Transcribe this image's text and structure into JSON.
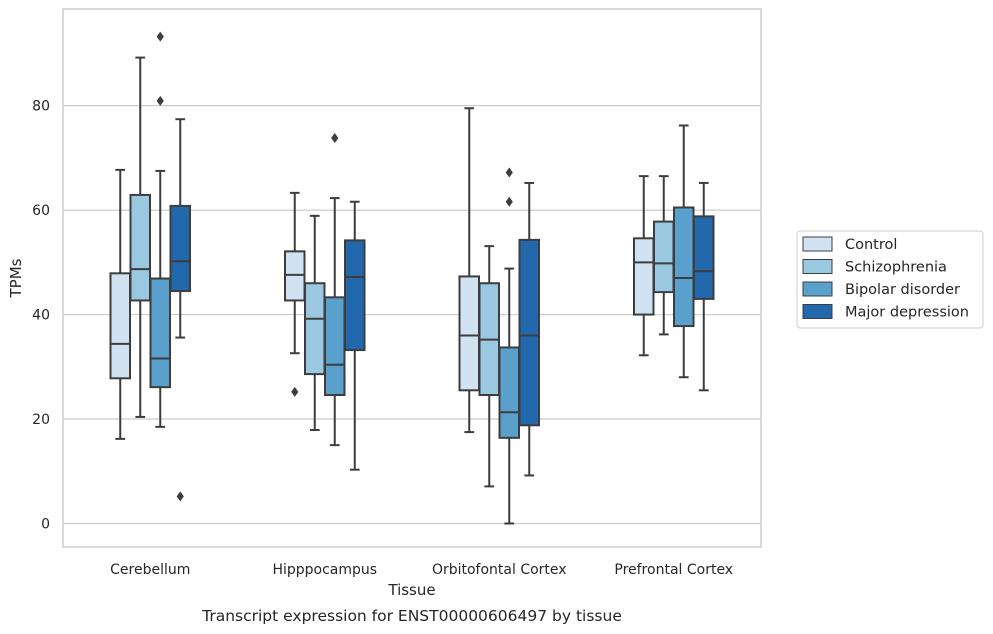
{
  "caption": "Transcript expression for ENST00000606497 by tissue",
  "chart_data": {
    "type": "box",
    "xlabel": "Tissue",
    "ylabel": "TPMs",
    "ylim": [
      -4.5,
      98.5
    ],
    "yticks": [
      0,
      20,
      40,
      60,
      80
    ],
    "grid": "horizontal",
    "legend_position": "right",
    "categories": [
      "Cerebellum",
      "Hipppocampus",
      "Orbitofontal Cortex",
      "Prefrontal Cortex"
    ],
    "series": [
      {
        "name": "Control",
        "color": "#d1e2f2",
        "boxes": [
          {
            "whislo": 16.2,
            "q1": 27.8,
            "med": 34.4,
            "q3": 47.9,
            "whishi": 67.7,
            "fliers": []
          },
          {
            "whislo": 32.6,
            "q1": 42.7,
            "med": 47.6,
            "q3": 52.1,
            "whishi": 63.3,
            "fliers": [
              25.2
            ]
          },
          {
            "whislo": 17.5,
            "q1": 25.5,
            "med": 36.0,
            "q3": 47.3,
            "whishi": 79.5,
            "fliers": []
          },
          {
            "whislo": 32.2,
            "q1": 40.0,
            "med": 50.0,
            "q3": 54.6,
            "whishi": 66.5,
            "fliers": []
          }
        ]
      },
      {
        "name": "Schizophrenia",
        "color": "#9ac8e0",
        "boxes": [
          {
            "whislo": 20.4,
            "q1": 42.7,
            "med": 48.7,
            "q3": 62.9,
            "whishi": 89.2,
            "fliers": []
          },
          {
            "whislo": 17.9,
            "q1": 28.6,
            "med": 39.2,
            "q3": 46.0,
            "whishi": 58.9,
            "fliers": []
          },
          {
            "whislo": 7.1,
            "q1": 24.6,
            "med": 35.2,
            "q3": 46.0,
            "whishi": 53.1,
            "fliers": []
          },
          {
            "whislo": 36.2,
            "q1": 44.3,
            "med": 49.8,
            "q3": 57.8,
            "whishi": 66.5,
            "fliers": []
          }
        ]
      },
      {
        "name": "Bipolar disorder",
        "color": "#5aa0cc",
        "boxes": [
          {
            "whislo": 18.5,
            "q1": 26.1,
            "med": 31.6,
            "q3": 46.9,
            "whishi": 67.5,
            "fliers": [
              93.2,
              80.9
            ]
          },
          {
            "whislo": 15.0,
            "q1": 24.6,
            "med": 30.4,
            "q3": 43.3,
            "whishi": 62.3,
            "fliers": [
              73.8
            ]
          },
          {
            "whislo": 0.0,
            "q1": 16.4,
            "med": 21.3,
            "q3": 33.7,
            "whishi": 48.8,
            "fliers": [
              67.2,
              61.6
            ]
          },
          {
            "whislo": 28.0,
            "q1": 37.8,
            "med": 47.0,
            "q3": 60.5,
            "whishi": 76.2,
            "fliers": []
          }
        ]
      },
      {
        "name": "Major depression",
        "color": "#2268ad",
        "boxes": [
          {
            "whislo": 35.6,
            "q1": 44.5,
            "med": 50.2,
            "q3": 60.8,
            "whishi": 77.4,
            "fliers": [
              5.2
            ]
          },
          {
            "whislo": 10.3,
            "q1": 33.2,
            "med": 47.2,
            "q3": 54.2,
            "whishi": 61.6,
            "fliers": []
          },
          {
            "whislo": 9.2,
            "q1": 18.8,
            "med": 36.0,
            "q3": 54.3,
            "whishi": 65.2,
            "fliers": []
          },
          {
            "whislo": 25.5,
            "q1": 43.0,
            "med": 48.3,
            "q3": 58.8,
            "whishi": 65.2,
            "fliers": []
          }
        ]
      }
    ]
  }
}
